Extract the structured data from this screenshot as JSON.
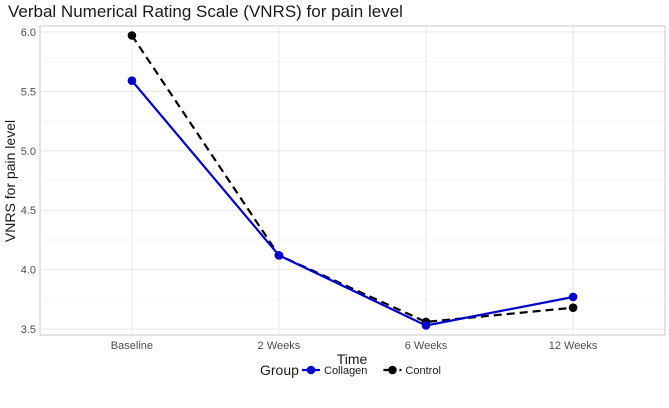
{
  "chart_data": {
    "type": "line",
    "title": "Verbal Numerical Rating Scale (VNRS) for pain level",
    "xlabel": "Time",
    "ylabel": "VNRS for pain level",
    "categories": [
      "Baseline",
      "2 Weeks",
      "6 Weeks",
      "12 Weeks"
    ],
    "ylim": [
      3.45,
      6.05
    ],
    "yticks": [
      "6.0",
      "5.5",
      "5.0",
      "4.5",
      "4.0",
      "3.5"
    ],
    "ytick_values": [
      6.0,
      5.5,
      5.0,
      4.5,
      4.0,
      3.5
    ],
    "grid": true,
    "legend": {
      "title": "Group",
      "position": "bottom"
    },
    "series": [
      {
        "name": "Collagen",
        "values": [
          5.59,
          4.12,
          3.53,
          3.77
        ],
        "color": "#0000cc",
        "linestyle": "solid"
      },
      {
        "name": "Control",
        "values": [
          5.97,
          4.12,
          3.56,
          3.68
        ],
        "color": "#000000",
        "linestyle": "dashed"
      }
    ]
  }
}
